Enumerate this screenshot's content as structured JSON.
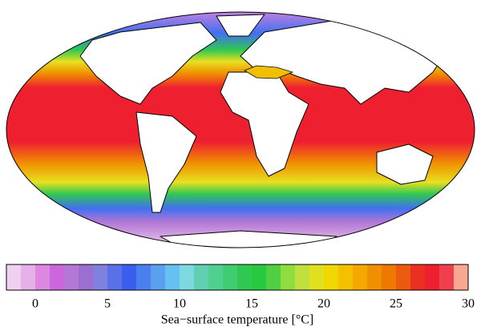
{
  "colorbar": {
    "label": "Sea−surface temperature [°C]",
    "range": [
      -2,
      30
    ],
    "ticks": [
      0,
      5,
      10,
      15,
      20,
      25,
      30
    ],
    "colors": [
      "#f0d0f0",
      "#e6b0e8",
      "#dd88e0",
      "#cc66dd",
      "#b477d4",
      "#9a6fd0",
      "#8080e0",
      "#5a70e8",
      "#3a5ff0",
      "#4b7ff0",
      "#5aa0f0",
      "#66c0f0",
      "#7dd8e0",
      "#60d0b0",
      "#50d090",
      "#40cc70",
      "#30c850",
      "#28c840",
      "#50d040",
      "#90dd40",
      "#c0e040",
      "#e0e020",
      "#f0d800",
      "#f5c000",
      "#f5a800",
      "#f09000",
      "#ee7800",
      "#ec5a10",
      "#ea3020",
      "#ee2030",
      "#f04050",
      "#f8a890"
    ]
  }
}
